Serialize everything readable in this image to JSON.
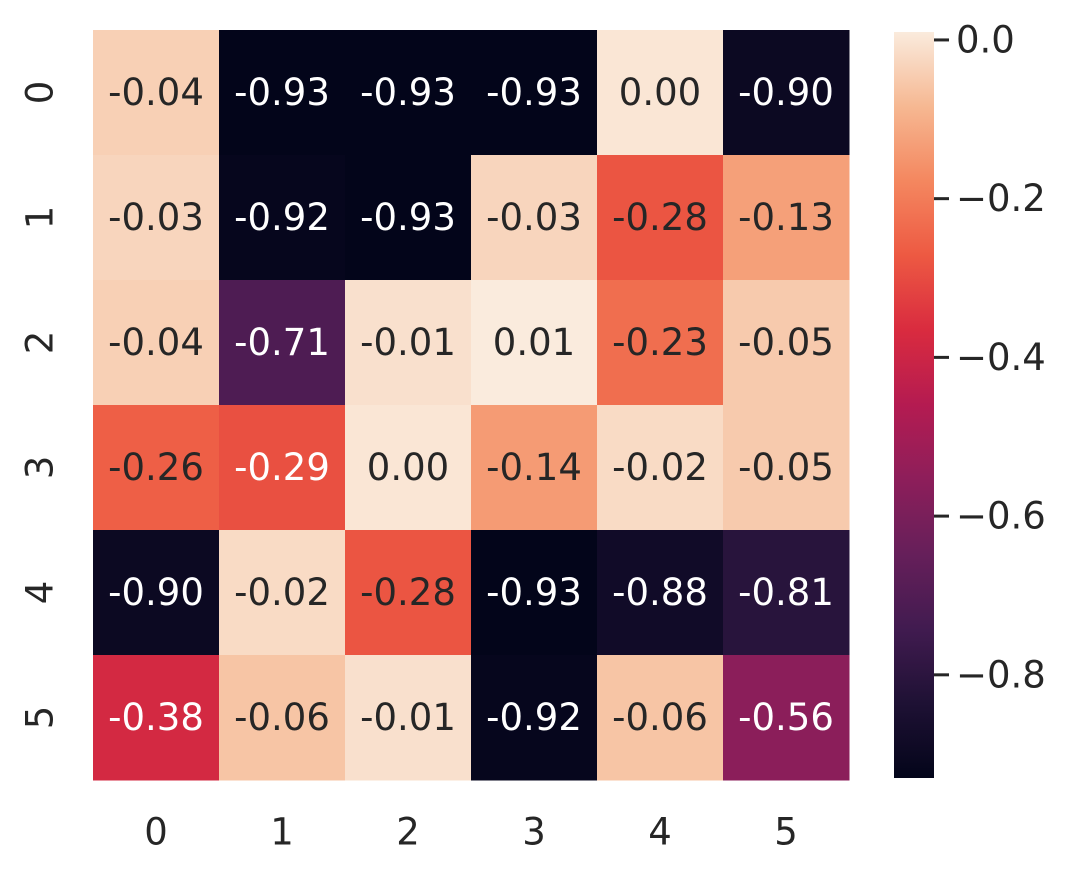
{
  "chart_data": {
    "type": "heatmap",
    "title": "",
    "xlabel": "",
    "ylabel": "",
    "x_tick_labels": [
      "0",
      "1",
      "2",
      "3",
      "4",
      "5"
    ],
    "y_tick_labels": [
      "0",
      "1",
      "2",
      "3",
      "4",
      "5"
    ],
    "values": [
      [
        -0.04,
        -0.93,
        -0.93,
        -0.93,
        0.0,
        -0.9
      ],
      [
        -0.03,
        -0.92,
        -0.93,
        -0.03,
        -0.28,
        -0.13
      ],
      [
        -0.04,
        -0.71,
        -0.01,
        0.01,
        -0.23,
        -0.05
      ],
      [
        -0.26,
        -0.29,
        0.0,
        -0.14,
        -0.02,
        -0.05
      ],
      [
        -0.9,
        -0.02,
        -0.28,
        -0.93,
        -0.88,
        -0.81
      ],
      [
        -0.38,
        -0.06,
        -0.01,
        -0.92,
        -0.06,
        -0.56
      ]
    ],
    "annotations": [
      [
        "-0.04",
        "-0.93",
        "-0.93",
        "-0.93",
        "0.00",
        "-0.90"
      ],
      [
        "-0.03",
        "-0.92",
        "-0.93",
        "-0.03",
        "-0.28",
        "-0.13"
      ],
      [
        "-0.04",
        "-0.71",
        "-0.01",
        "0.01",
        "-0.23",
        "-0.05"
      ],
      [
        "-0.26",
        "-0.29",
        "0.00",
        "-0.14",
        "-0.02",
        "-0.05"
      ],
      [
        "-0.90",
        "-0.02",
        "-0.28",
        "-0.93",
        "-0.88",
        "-0.81"
      ],
      [
        "-0.38",
        "-0.06",
        "-0.01",
        "-0.92",
        "-0.06",
        "-0.56"
      ]
    ],
    "colormap": "rocket",
    "vmin": -0.93,
    "vmax": 0.01,
    "colorbar": {
      "ticks": [
        0.0,
        -0.2,
        -0.4,
        -0.6,
        -0.8
      ],
      "tick_labels": [
        "0.0",
        "−0.2",
        "−0.4",
        "−0.6",
        "−0.8"
      ]
    },
    "annotation_colors": {
      "light_text": "#ffffff",
      "dark_text": "#262626"
    },
    "tick_color": "#262626"
  }
}
